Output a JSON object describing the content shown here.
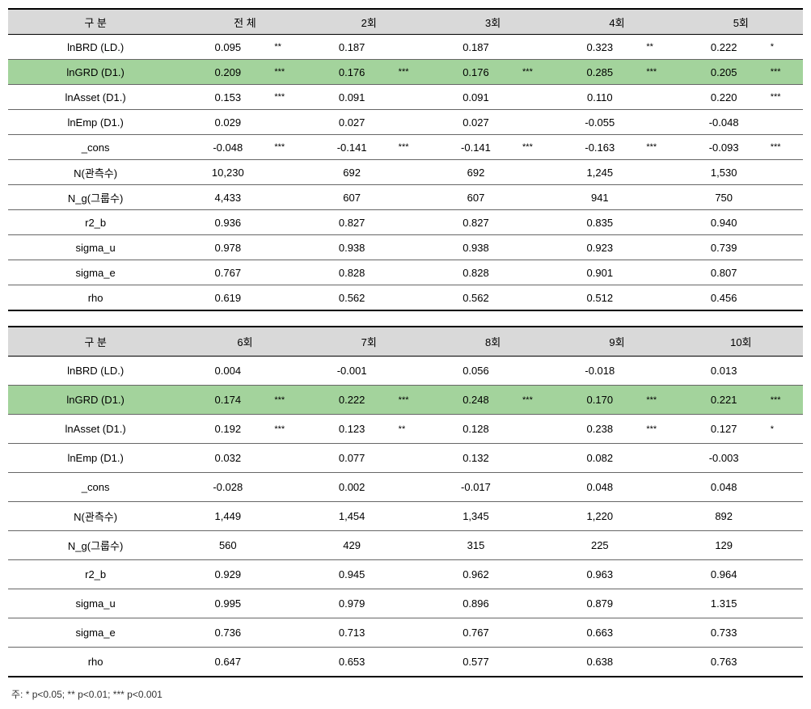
{
  "table1": {
    "header_label": "구  분",
    "columns": [
      "전  체",
      "2회",
      "3회",
      "4회",
      "5회"
    ],
    "rows": [
      {
        "label": "lnBRD (LD.)",
        "vals": [
          "0.095",
          "0.187",
          "0.187",
          "0.323",
          "0.222"
        ],
        "sigs": [
          "**",
          "",
          "",
          "**",
          "*"
        ],
        "highlight": false
      },
      {
        "label": "lnGRD (D1.)",
        "vals": [
          "0.209",
          "0.176",
          "0.176",
          "0.285",
          "0.205"
        ],
        "sigs": [
          "***",
          "***",
          "***",
          "***",
          "***"
        ],
        "highlight": true
      },
      {
        "label": "lnAsset (D1.)",
        "vals": [
          "0.153",
          "0.091",
          "0.091",
          "0.110",
          "0.220"
        ],
        "sigs": [
          "***",
          "",
          "",
          "",
          "***"
        ],
        "highlight": false
      },
      {
        "label": "lnEmp (D1.)",
        "vals": [
          "0.029",
          "0.027",
          "0.027",
          "-0.055",
          "-0.048"
        ],
        "sigs": [
          "",
          "",
          "",
          "",
          ""
        ],
        "highlight": false
      },
      {
        "label": "_cons",
        "vals": [
          "-0.048",
          "-0.141",
          "-0.141",
          "-0.163",
          "-0.093"
        ],
        "sigs": [
          "***",
          "***",
          "***",
          "***",
          "***"
        ],
        "highlight": false
      },
      {
        "label": "N(관측수)",
        "vals": [
          "10,230",
          "692",
          "692",
          "1,245",
          "1,530"
        ],
        "sigs": [
          "",
          "",
          "",
          "",
          ""
        ],
        "highlight": false
      },
      {
        "label": "N_g(그룹수)",
        "vals": [
          "4,433",
          "607",
          "607",
          "941",
          "750"
        ],
        "sigs": [
          "",
          "",
          "",
          "",
          ""
        ],
        "highlight": false
      },
      {
        "label": "r2_b",
        "vals": [
          "0.936",
          "0.827",
          "0.827",
          "0.835",
          "0.940"
        ],
        "sigs": [
          "",
          "",
          "",
          "",
          ""
        ],
        "highlight": false
      },
      {
        "label": "sigma_u",
        "vals": [
          "0.978",
          "0.938",
          "0.938",
          "0.923",
          "0.739"
        ],
        "sigs": [
          "",
          "",
          "",
          "",
          ""
        ],
        "highlight": false
      },
      {
        "label": "sigma_e",
        "vals": [
          "0.767",
          "0.828",
          "0.828",
          "0.901",
          "0.807"
        ],
        "sigs": [
          "",
          "",
          "",
          "",
          ""
        ],
        "highlight": false
      },
      {
        "label": "rho",
        "vals": [
          "0.619",
          "0.562",
          "0.562",
          "0.512",
          "0.456"
        ],
        "sigs": [
          "",
          "",
          "",
          "",
          ""
        ],
        "highlight": false
      }
    ]
  },
  "table2": {
    "header_label": "구  분",
    "columns": [
      "6회",
      "7회",
      "8회",
      "9회",
      "10회"
    ],
    "rows": [
      {
        "label": "lnBRD (LD.)",
        "vals": [
          "0.004",
          "-0.001",
          "0.056",
          "-0.018",
          "0.013"
        ],
        "sigs": [
          "",
          "",
          "",
          "",
          ""
        ],
        "highlight": false
      },
      {
        "label": "lnGRD (D1.)",
        "vals": [
          "0.174",
          "0.222",
          "0.248",
          "0.170",
          "0.221"
        ],
        "sigs": [
          "***",
          "***",
          "***",
          "***",
          "***"
        ],
        "highlight": true
      },
      {
        "label": "lnAsset (D1.)",
        "vals": [
          "0.192",
          "0.123",
          "0.128",
          "0.238",
          "0.127"
        ],
        "sigs": [
          "***",
          "**",
          "",
          "***",
          "*"
        ],
        "highlight": false
      },
      {
        "label": "lnEmp (D1.)",
        "vals": [
          "0.032",
          "0.077",
          "0.132",
          "0.082",
          "-0.003"
        ],
        "sigs": [
          "",
          "",
          "",
          "",
          ""
        ],
        "highlight": false
      },
      {
        "label": "_cons",
        "vals": [
          "-0.028",
          "0.002",
          "-0.017",
          "0.048",
          "0.048"
        ],
        "sigs": [
          "",
          "",
          "",
          "",
          ""
        ],
        "highlight": false
      },
      {
        "label": "N(관측수)",
        "vals": [
          "1,449",
          "1,454",
          "1,345",
          "1,220",
          "892"
        ],
        "sigs": [
          "",
          "",
          "",
          "",
          ""
        ],
        "highlight": false
      },
      {
        "label": "N_g(그룹수)",
        "vals": [
          "560",
          "429",
          "315",
          "225",
          "129"
        ],
        "sigs": [
          "",
          "",
          "",
          "",
          ""
        ],
        "highlight": false
      },
      {
        "label": "r2_b",
        "vals": [
          "0.929",
          "0.945",
          "0.962",
          "0.963",
          "0.964"
        ],
        "sigs": [
          "",
          "",
          "",
          "",
          ""
        ],
        "highlight": false
      },
      {
        "label": "sigma_u",
        "vals": [
          "0.995",
          "0.979",
          "0.896",
          "0.879",
          "1.315"
        ],
        "sigs": [
          "",
          "",
          "",
          "",
          ""
        ],
        "highlight": false
      },
      {
        "label": "sigma_e",
        "vals": [
          "0.736",
          "0.713",
          "0.767",
          "0.663",
          "0.733"
        ],
        "sigs": [
          "",
          "",
          "",
          "",
          ""
        ],
        "highlight": false
      },
      {
        "label": "rho",
        "vals": [
          "0.647",
          "0.653",
          "0.577",
          "0.638",
          "0.763"
        ],
        "sigs": [
          "",
          "",
          "",
          "",
          ""
        ],
        "highlight": false
      }
    ]
  },
  "footnote": "주: * p<0.05; ** p<0.01; *** p<0.001"
}
